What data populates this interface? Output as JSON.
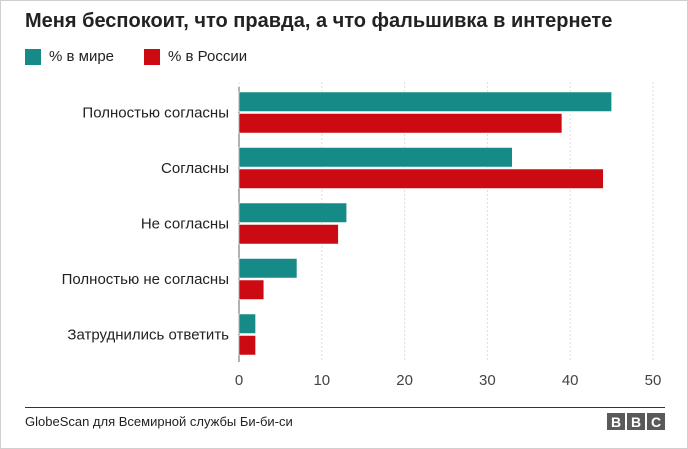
{
  "chart_data": {
    "type": "bar",
    "orientation": "horizontal",
    "title": "Меня беспокоит, что правда, а что фальшивка в интернете",
    "categories": [
      "Полностью согласны",
      "Согласны",
      "Не согласны",
      "Полностью не согласны",
      "Затруднились ответить"
    ],
    "series": [
      {
        "name": "% в мире",
        "color": "#158a86",
        "values": [
          45,
          33,
          13,
          7,
          2
        ]
      },
      {
        "name": "% в России",
        "color": "#cc0a11",
        "values": [
          39,
          44,
          12,
          3,
          2
        ]
      }
    ],
    "xlim": [
      0,
      50
    ],
    "xticks": [
      "0",
      "10",
      "20",
      "30",
      "40",
      "50"
    ],
    "grid": true,
    "legend_position": "top-left"
  },
  "source": "GlobeScan для Всемирной службы Би-би-си",
  "logo": [
    "B",
    "B",
    "C"
  ]
}
